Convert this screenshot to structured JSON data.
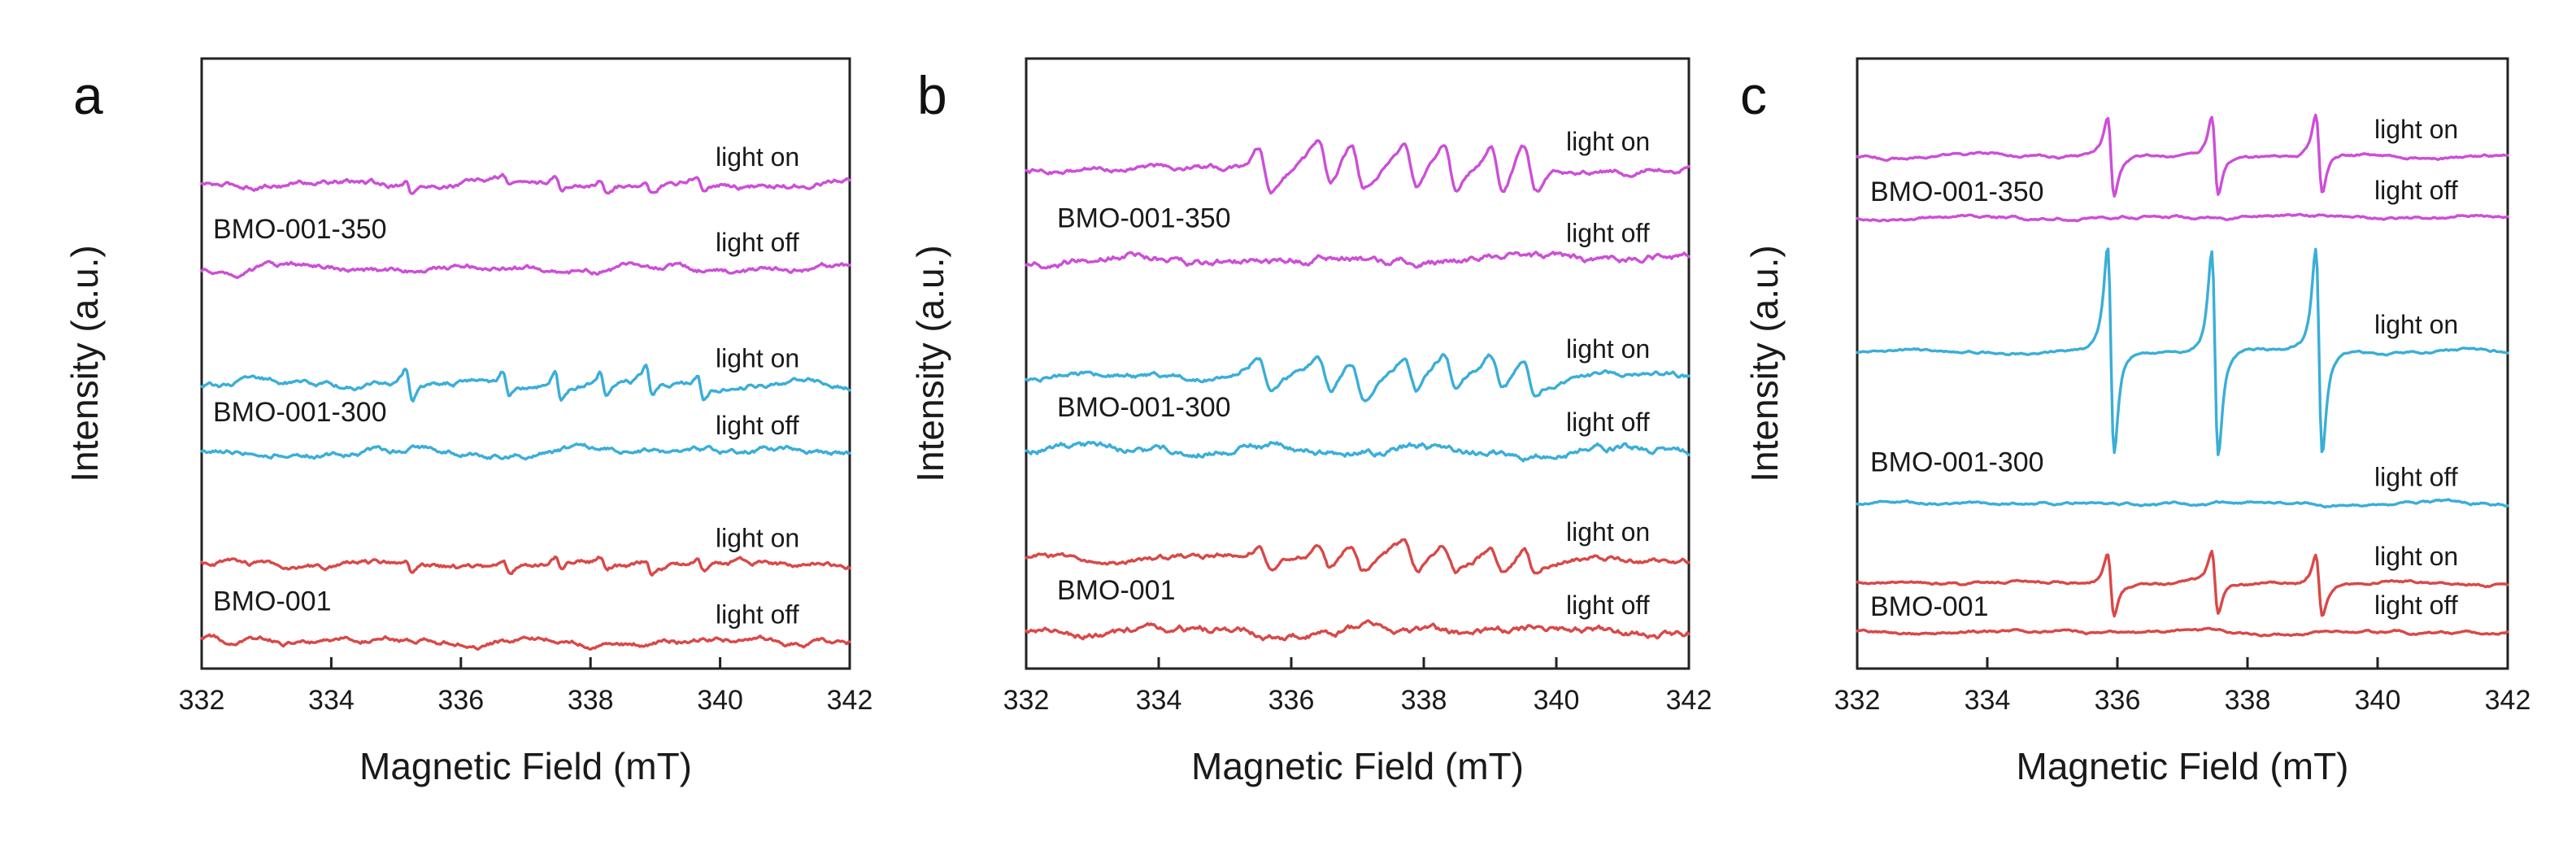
{
  "figure": {
    "panel_letters": [
      "a",
      "b",
      "c"
    ]
  },
  "chart_data": [
    {
      "type": "line",
      "panel": "a",
      "xlabel": "Magnetic Field (mT)",
      "ylabel": "Intensity (a.u.)",
      "xlim": [
        332,
        342
      ],
      "xticks": [
        332,
        334,
        336,
        338,
        340,
        342
      ],
      "xtick_labels": [
        "332",
        "334",
        "336",
        "338",
        "340",
        "342"
      ],
      "colors": {
        "BMO-001-350": "#cc4fd6",
        "BMO-001-300": "#3aaed8",
        "BMO-001": "#d94848"
      },
      "sample_labels": [
        "BMO-001-350",
        "BMO-001-300",
        "BMO-001"
      ],
      "series": [
        {
          "name": "BMO-001-350 light on",
          "sample": "BMO-001-350",
          "state": "light on",
          "offset": 0,
          "pattern": "multiplet",
          "amplitude": 0.012,
          "noise": 0.006
        },
        {
          "name": "BMO-001-350 light off",
          "sample": "BMO-001-350",
          "state": "light off",
          "offset": 0,
          "pattern": "flat",
          "amplitude": 0,
          "noise": 0.006
        },
        {
          "name": "BMO-001-300 light on",
          "sample": "BMO-001-300",
          "state": "light on",
          "offset": 0,
          "pattern": "multiplet",
          "amplitude": 0.03,
          "noise": 0.006
        },
        {
          "name": "BMO-001-300 light off",
          "sample": "BMO-001-300",
          "state": "light off",
          "offset": 0,
          "pattern": "flat",
          "amplitude": 0,
          "noise": 0.006
        },
        {
          "name": "BMO-001 light on",
          "sample": "BMO-001",
          "state": "light on",
          "offset": 0,
          "pattern": "multiplet",
          "amplitude": 0.012,
          "noise": 0.006
        },
        {
          "name": "BMO-001 light off",
          "sample": "BMO-001",
          "state": "light off",
          "offset": 0,
          "pattern": "flat",
          "amplitude": 0,
          "noise": 0.006
        }
      ],
      "y_offsets": [
        0.795,
        0.655,
        0.465,
        0.355,
        0.17,
        0.045
      ]
    },
    {
      "type": "line",
      "panel": "b",
      "xlabel": "Magnetic Field (mT)",
      "ylabel": "Intensity (a.u.)",
      "xlim": [
        332,
        342
      ],
      "xticks": [
        332,
        334,
        336,
        338,
        340,
        342
      ],
      "xtick_labels": [
        "332",
        "334",
        "336",
        "338",
        "340",
        "342"
      ],
      "colors": {
        "BMO-001-350": "#cc4fd6",
        "BMO-001-300": "#3aaed8",
        "BMO-001": "#d94848"
      },
      "sample_labels": [
        "BMO-001-350",
        "BMO-001-300",
        "BMO-001"
      ],
      "series": [
        {
          "name": "BMO-001-350 light on",
          "sample": "BMO-001-350",
          "state": "light on",
          "pattern": "broad-multiplet",
          "amplitude": 0.045,
          "noise": 0.006
        },
        {
          "name": "BMO-001-350 light off",
          "sample": "BMO-001-350",
          "state": "light off",
          "pattern": "flat",
          "amplitude": 0,
          "noise": 0.008
        },
        {
          "name": "BMO-001-300 light on",
          "sample": "BMO-001-300",
          "state": "light on",
          "pattern": "broad-multiplet",
          "amplitude": 0.035,
          "noise": 0.006
        },
        {
          "name": "BMO-001-300 light off",
          "sample": "BMO-001-300",
          "state": "light off",
          "pattern": "flat",
          "amplitude": 0,
          "noise": 0.008
        },
        {
          "name": "BMO-001 light on",
          "sample": "BMO-001",
          "state": "light on",
          "pattern": "broad-multiplet",
          "amplitude": 0.025,
          "noise": 0.006
        },
        {
          "name": "BMO-001 light off",
          "sample": "BMO-001",
          "state": "light off",
          "pattern": "flat",
          "amplitude": 0,
          "noise": 0.008
        }
      ],
      "y_offsets": [
        0.82,
        0.67,
        0.48,
        0.36,
        0.18,
        0.06
      ]
    },
    {
      "type": "line",
      "panel": "c",
      "xlabel": "Magnetic Field (mT)",
      "ylabel": "Intensity (a.u.)",
      "xlim": [
        332,
        342
      ],
      "xticks": [
        332,
        334,
        336,
        338,
        340,
        342
      ],
      "xtick_labels": [
        "332",
        "334",
        "336",
        "338",
        "340",
        "342"
      ],
      "colors": {
        "BMO-001-350": "#cc4fd6",
        "BMO-001-300": "#3aaed8",
        "BMO-001": "#d94848"
      },
      "sample_labels": [
        "BMO-001-350",
        "BMO-001-300",
        "BMO-001"
      ],
      "peak_centers_mT": [
        335.9,
        337.5,
        339.1
      ],
      "series": [
        {
          "name": "BMO-001-350 light on",
          "sample": "BMO-001-350",
          "state": "light on",
          "pattern": "triplet",
          "amplitude": 0.075,
          "noise": 0.003
        },
        {
          "name": "BMO-001-350 light off",
          "sample": "BMO-001-350",
          "state": "light off",
          "pattern": "flat",
          "amplitude": 0,
          "noise": 0.003
        },
        {
          "name": "BMO-001-300 light on",
          "sample": "BMO-001-300",
          "state": "light on",
          "pattern": "triplet",
          "amplitude": 0.2,
          "noise": 0.003
        },
        {
          "name": "BMO-001-300 light off",
          "sample": "BMO-001-300",
          "state": "light off",
          "pattern": "flat",
          "amplitude": 0,
          "noise": 0.003
        },
        {
          "name": "BMO-001 light on",
          "sample": "BMO-001",
          "state": "light on",
          "pattern": "triplet",
          "amplitude": 0.06,
          "noise": 0.003
        },
        {
          "name": "BMO-001 light off",
          "sample": "BMO-001",
          "state": "light off",
          "pattern": "flat",
          "amplitude": 0,
          "noise": 0.003
        }
      ],
      "y_offsets": [
        0.84,
        0.74,
        0.52,
        0.27,
        0.14,
        0.06
      ]
    }
  ]
}
